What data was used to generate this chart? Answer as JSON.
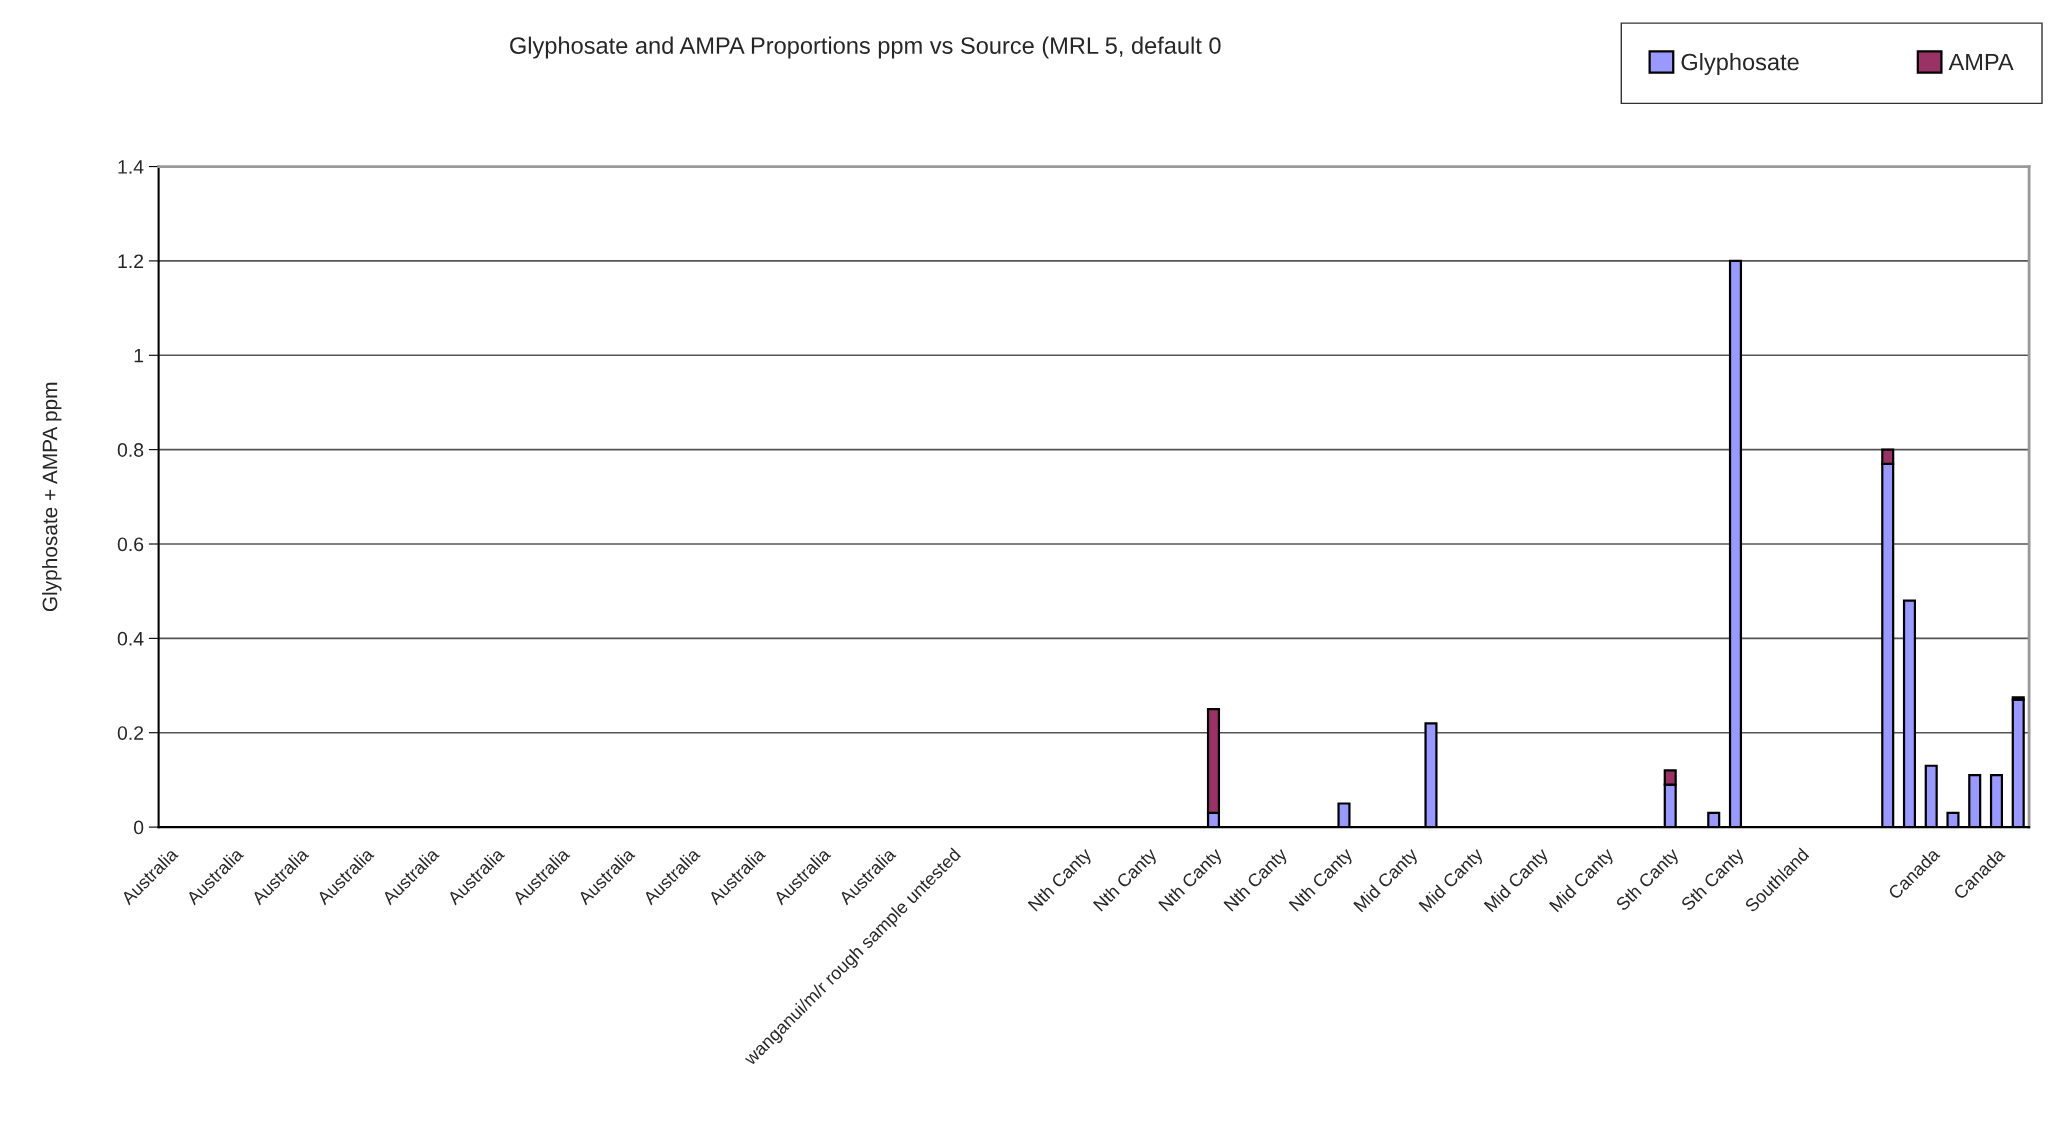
{
  "chart_data": {
    "type": "bar",
    "stacked": true,
    "title": "Glyphosate and AMPA Proportions ppm vs Source (MRL 5, default 0",
    "ylabel": "Glyphosate + AMPA ppm",
    "categories": [
      "Australia",
      null,
      null,
      "Australia",
      null,
      null,
      "Australia",
      null,
      null,
      "Australia",
      null,
      null,
      "Australia",
      null,
      null,
      "Australia",
      null,
      null,
      "Australia",
      null,
      null,
      "Australia",
      null,
      null,
      "Australia",
      null,
      null,
      "Australia",
      null,
      null,
      "Australia",
      null,
      null,
      "Australia",
      null,
      null,
      "wanganui/m/r rough sample untested",
      null,
      null,
      null,
      null,
      null,
      "Nth Canty",
      null,
      null,
      "Nth Canty",
      null,
      null,
      "Nth Canty",
      null,
      null,
      "Nth Canty",
      null,
      null,
      "Nth Canty",
      null,
      null,
      "Mid Canty",
      null,
      null,
      "Mid Canty",
      null,
      null,
      "Mid Canty",
      null,
      null,
      "Mid Canty",
      null,
      null,
      "Sth Canty",
      null,
      null,
      "Sth Canty",
      null,
      null,
      "Southland",
      null,
      null,
      null,
      null,
      null,
      "Canada",
      null,
      null,
      "Canada",
      null
    ],
    "series": [
      {
        "name": "Glyphosate",
        "color": "#9999ff",
        "values": [
          0,
          0,
          0,
          0,
          0,
          0,
          0,
          0,
          0,
          0,
          0,
          0,
          0,
          0,
          0,
          0,
          0,
          0,
          0,
          0,
          0,
          0,
          0,
          0,
          0,
          0,
          0,
          0,
          0,
          0,
          0,
          0,
          0,
          0,
          0,
          0,
          0,
          0,
          0,
          0,
          0,
          0,
          0,
          0,
          0,
          0,
          0,
          0,
          0.03,
          0,
          0,
          0,
          0,
          0,
          0.05,
          0,
          0,
          0,
          0.22,
          0,
          0,
          0,
          0,
          0,
          0,
          0,
          0,
          0,
          0,
          0.09,
          0,
          0.03,
          1.2,
          0,
          0,
          0,
          0,
          0,
          0,
          0.77,
          0.48,
          0.13,
          0.03,
          0.11,
          0.11,
          0.27
        ]
      },
      {
        "name": "AMPA",
        "color": "#993366",
        "values": [
          0,
          0,
          0,
          0,
          0,
          0,
          0,
          0,
          0,
          0,
          0,
          0,
          0,
          0,
          0,
          0,
          0,
          0,
          0,
          0,
          0,
          0,
          0,
          0,
          0,
          0,
          0,
          0,
          0,
          0,
          0,
          0,
          0,
          0,
          0,
          0,
          0,
          0,
          0,
          0,
          0,
          0,
          0,
          0,
          0,
          0,
          0,
          0,
          0.22,
          0,
          0,
          0,
          0,
          0,
          0,
          0,
          0,
          0,
          0,
          0,
          0,
          0,
          0,
          0,
          0,
          0,
          0,
          0,
          0,
          0.03,
          0,
          0,
          0,
          0,
          0,
          0,
          0,
          0,
          0,
          0.03,
          0,
          0,
          0,
          0,
          0,
          0.005
        ]
      }
    ],
    "ylim": [
      0,
      1.4
    ],
    "yticks": [
      0,
      0.2,
      0.4,
      0.6,
      0.8,
      1,
      1.2,
      1.4
    ],
    "grid": "y",
    "legend": "top right"
  }
}
